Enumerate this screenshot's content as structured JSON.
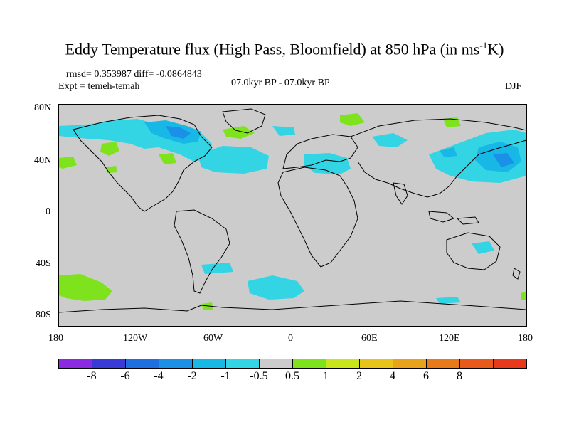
{
  "title": {
    "main": "Eddy Temperature flux (High Pass, Bloomfield) at 850 hPa (in ms",
    "sup": "-1",
    "end": "K)"
  },
  "stats": {
    "rmsd_diff": "rmsd= 0.353987 diff= -0.0864843",
    "expt": "Expt = temeh-temah",
    "period": "07.0kyr BP - 07.0kyr BP",
    "season": "DJF"
  },
  "axes": {
    "lat_labels": [
      "80N",
      "40N",
      "0",
      "40S",
      "80S"
    ],
    "lon_labels": [
      "180",
      "120W",
      "60W",
      "0",
      "60E",
      "120E",
      "180"
    ]
  },
  "colorbar": {
    "colors": [
      "#8a2be2",
      "#3a3ad6",
      "#1f6fe0",
      "#1a90e6",
      "#17b8e6",
      "#33d4e4",
      "#cccccc",
      "#7ee31d",
      "#c8e61a",
      "#e8c41a",
      "#e8a31a",
      "#e87a1a",
      "#e85a1a",
      "#e83a1a"
    ],
    "labels": [
      "-8",
      "-6",
      "-4",
      "-2",
      "-1",
      "-0.5",
      "0.5",
      "1",
      "2",
      "4",
      "6",
      "8"
    ]
  },
  "field_colors": {
    "cyan": "#33d4e4",
    "light_blue": "#17b8e6",
    "blue": "#1a90e6",
    "green": "#7ee31d",
    "land_outline": "#000000",
    "background": "#cccccc"
  }
}
